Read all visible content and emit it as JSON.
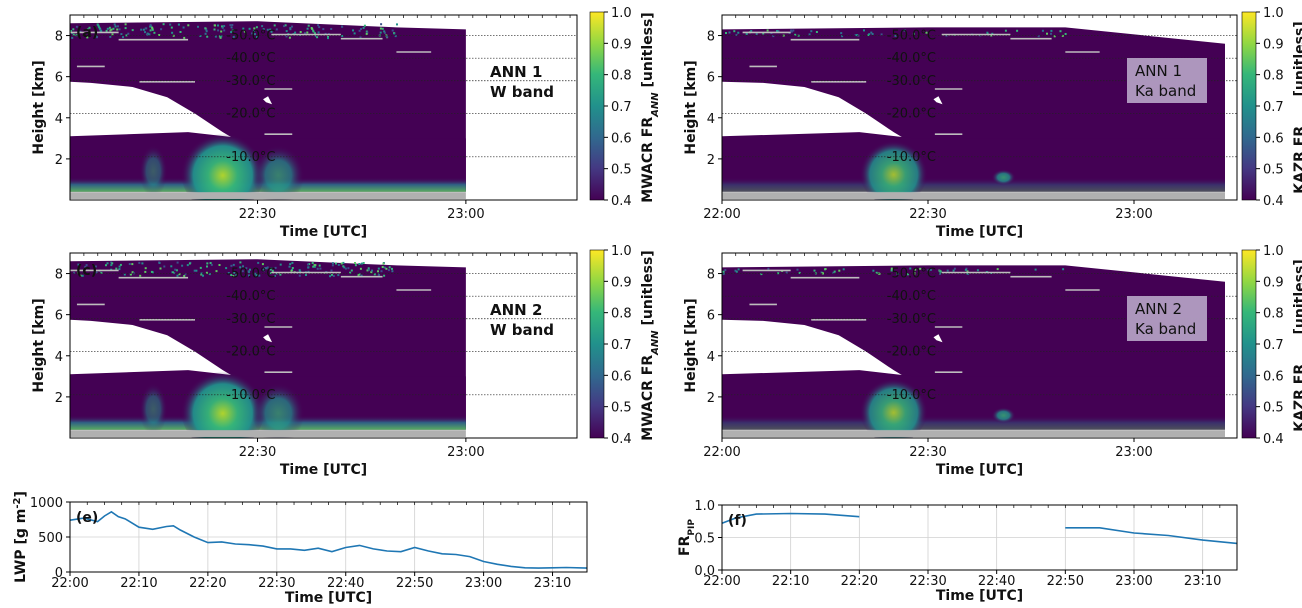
{
  "colors": {
    "viridis_dark": "#440154",
    "lwp_line": "#1f77b4",
    "fr_line": "#1f77b4"
  },
  "colorbar": {
    "min": 0.4,
    "max": 1.0,
    "ticks": [
      "0.4",
      "0.5",
      "0.6",
      "0.7",
      "0.8",
      "0.9",
      "1.0"
    ]
  },
  "chart_data": [
    {
      "type": "heatmap",
      "panel": "(a)",
      "ylabel": "Height [km]",
      "xlabel": "Time [UTC]",
      "ylim": [
        0,
        9
      ],
      "yticks": [
        "2",
        "4",
        "6",
        "8"
      ],
      "xticks": [
        "22:30",
        "23:00"
      ],
      "colorbar_label": "MWACR FR_ANN [unitless]",
      "annotation": [
        "ANN 1",
        "W band"
      ],
      "isotherms": [
        "-50.0°C",
        "-40.0°C",
        "-30.0°C",
        "-20.0°C",
        "-10.0°C"
      ],
      "radar": "W"
    },
    {
      "type": "heatmap",
      "panel": "(b)",
      "ylabel": "Height [km]",
      "xlabel": "Time [UTC]",
      "ylim": [
        0,
        9
      ],
      "yticks": [
        "2",
        "4",
        "6",
        "8"
      ],
      "xticks": [
        "22:00",
        "22:30",
        "23:00"
      ],
      "colorbar_label": "KAZR FR_ANN [unitless]",
      "annotation": [
        "ANN 1",
        "Ka band"
      ],
      "isotherms": [
        "-50.0°C",
        "-40.0°C",
        "-30.0°C",
        "-20.0°C",
        "-10.0°C"
      ],
      "radar": "Ka"
    },
    {
      "type": "heatmap",
      "panel": "(c)",
      "ylabel": "Height [km]",
      "xlabel": "Time [UTC]",
      "ylim": [
        0,
        9
      ],
      "yticks": [
        "2",
        "4",
        "6",
        "8"
      ],
      "xticks": [
        "22:30",
        "23:00"
      ],
      "colorbar_label": "MWACR FR_ANN [unitless]",
      "annotation": [
        "ANN 2",
        "W band"
      ],
      "isotherms": [
        "-50.0°C",
        "-40.0°C",
        "-30.0°C",
        "-20.0°C",
        "-10.0°C"
      ],
      "radar": "W"
    },
    {
      "type": "heatmap",
      "panel": "(d)",
      "ylabel": "Height [km]",
      "xlabel": "Time [UTC]",
      "ylim": [
        0,
        9
      ],
      "yticks": [
        "2",
        "4",
        "6",
        "8"
      ],
      "xticks": [
        "22:00",
        "22:30",
        "23:00"
      ],
      "colorbar_label": "KAZR FR_ANN [unitless]",
      "annotation": [
        "ANN 2",
        "Ka band"
      ],
      "isotherms": [
        "-50.0°C",
        "-40.0°C",
        "-30.0°C",
        "-20.0°C",
        "-10.0°C"
      ],
      "radar": "Ka"
    },
    {
      "type": "line",
      "panel": "(e)",
      "ylabel": "LWP [g m⁻²]",
      "xlabel": "Time [UTC]",
      "xlim": [
        "22:00",
        "23:15"
      ],
      "ylim": [
        0,
        1000
      ],
      "yticks": [
        "0",
        "500",
        "1000"
      ],
      "xticks": [
        "22:00",
        "22:10",
        "22:20",
        "22:30",
        "22:40",
        "22:50",
        "23:00",
        "23:10"
      ],
      "grid": true,
      "series": [
        {
          "x": [
            "22:00",
            "22:02",
            "22:04",
            "22:05",
            "22:06",
            "22:07",
            "22:08",
            "22:10",
            "22:12",
            "22:14",
            "22:15",
            "22:16",
            "22:17",
            "22:18",
            "22:20",
            "22:22",
            "22:24",
            "22:26",
            "22:28",
            "22:30",
            "22:32",
            "22:34",
            "22:36",
            "22:38",
            "22:40",
            "22:42",
            "22:44",
            "22:46",
            "22:48",
            "22:50",
            "22:52",
            "22:54",
            "22:56",
            "22:58",
            "23:00",
            "23:02",
            "23:04",
            "23:06",
            "23:08",
            "23:10",
            "23:12",
            "23:15"
          ],
          "values": [
            740,
            770,
            720,
            800,
            860,
            790,
            760,
            640,
            610,
            650,
            660,
            600,
            550,
            500,
            420,
            430,
            400,
            390,
            370,
            330,
            330,
            310,
            340,
            290,
            350,
            380,
            330,
            300,
            290,
            350,
            300,
            260,
            250,
            220,
            150,
            110,
            80,
            60,
            55,
            60,
            65,
            55
          ]
        }
      ]
    },
    {
      "type": "line",
      "panel": "(f)",
      "ylabel": "FR_PIP",
      "xlabel": "Time [UTC]",
      "xlim": [
        "22:00",
        "23:15"
      ],
      "ylim": [
        0,
        1.0
      ],
      "yticks": [
        "0.0",
        "0.5",
        "1.0"
      ],
      "xticks": [
        "22:00",
        "22:10",
        "22:20",
        "22:30",
        "22:40",
        "22:50",
        "23:00",
        "23:10"
      ],
      "grid": true,
      "series": [
        {
          "x": [
            "22:00",
            "22:02",
            "22:05",
            "22:10",
            "22:15",
            "22:20"
          ],
          "values": [
            0.72,
            0.8,
            0.86,
            0.87,
            0.86,
            0.82
          ]
        },
        {
          "x": [
            "22:50",
            "22:55",
            "23:00",
            "23:05",
            "23:10",
            "23:15"
          ],
          "values": [
            0.65,
            0.65,
            0.57,
            0.53,
            0.46,
            0.41
          ]
        }
      ]
    }
  ]
}
